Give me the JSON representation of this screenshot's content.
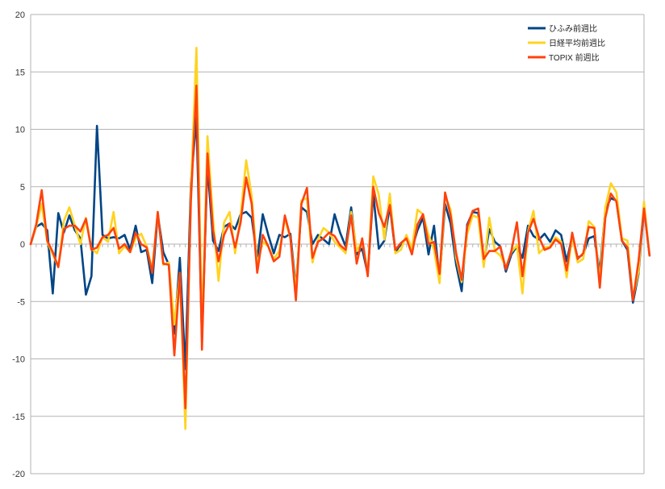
{
  "chart_data": {
    "type": "line",
    "title": "",
    "xlabel": "",
    "ylabel": "",
    "ylim": [
      -20,
      20
    ],
    "yticks": [
      20,
      15,
      10,
      5,
      0,
      -5,
      -10,
      -15,
      -20
    ],
    "ytick_labels": [
      "20",
      "15",
      "10",
      "5",
      "0",
      "-5",
      "-10",
      "-15",
      "-20"
    ],
    "grid": "horizontal",
    "legend_position": "top-right",
    "x_count": 112,
    "series": [
      {
        "name": "ひふみ前週比",
        "color": "#004586",
        "values": [
          0,
          1.5,
          1.8,
          1.2,
          -4.3,
          2.7,
          1.0,
          2.5,
          1.2,
          0.5,
          -4.4,
          -2.8,
          10.3,
          0.8,
          0.5,
          0.6,
          0.5,
          0.8,
          -0.5,
          1.6,
          -0.7,
          -0.5,
          -3.4,
          2.6,
          -0.7,
          -1.8,
          -7.8,
          -1.2,
          -10.9,
          5.3,
          11.0,
          -8.2,
          6.9,
          0.3,
          -0.6,
          1.5,
          1.8,
          1.3,
          2.6,
          2.8,
          2.3,
          -1.3,
          2.6,
          0.8,
          -0.8,
          0.8,
          0.6,
          0.9,
          -3.8,
          3.2,
          2.8,
          0.0,
          0.8,
          0.4,
          0.0,
          2.6,
          1.0,
          -0.2,
          3.2,
          -0.9,
          -0.4,
          -2.6,
          4.4,
          -0.4,
          0.3,
          3.3,
          -0.7,
          0.0,
          0.5,
          -0.4,
          1.2,
          2.3,
          -0.9,
          1.6,
          -3.1,
          3.5,
          1.8,
          -1.8,
          -4.1,
          1.7,
          2.8,
          2.7,
          -1.6,
          1.3,
          0.2,
          -0.2,
          -2.4,
          -0.9,
          -0.2,
          -1.2,
          1.6,
          0.7,
          0.4,
          0.9,
          0.2,
          1.2,
          0.8,
          -1.5,
          0.7,
          -1.2,
          -0.9,
          0.5,
          0.7,
          -2.5,
          3.0,
          4.0,
          3.8,
          0.3,
          -0.5,
          -5.1,
          -2.6,
          3.2,
          -1.0
        ]
      },
      {
        "name": "日経平均前週比",
        "color": "#ffd320",
        "values": [
          0,
          1.5,
          3.5,
          0.2,
          -0.9,
          -2.0,
          2.0,
          3.2,
          1.6,
          0.0,
          2.3,
          -0.4,
          -0.8,
          0.6,
          0.2,
          2.8,
          -0.8,
          -0.2,
          -0.7,
          0.5,
          0.9,
          -0.2,
          -2.2,
          2.8,
          -1.8,
          -1.6,
          -7.0,
          -2.5,
          -16.1,
          4.7,
          17.1,
          -7.5,
          9.4,
          2.2,
          -3.2,
          1.9,
          2.8,
          -0.8,
          2.5,
          7.3,
          4.2,
          -1.8,
          0.2,
          -0.2,
          -1.3,
          -0.6,
          2.2,
          0.5,
          -4.1,
          3.8,
          4.0,
          -1.6,
          0.4,
          1.4,
          1.0,
          0.2,
          -0.3,
          -0.8,
          2.8,
          -0.6,
          0.3,
          -2.5,
          5.9,
          4.3,
          0.4,
          4.4,
          -0.8,
          -0.5,
          0.8,
          -0.4,
          3.0,
          2.6,
          0.8,
          -0.5,
          -3.4,
          4.2,
          3.0,
          -1.2,
          -3.3,
          0.9,
          2.5,
          2.3,
          -2.0,
          2.3,
          -0.6,
          -1.0,
          -2.0,
          -0.7,
          -0.1,
          -4.3,
          1.1,
          2.9,
          -0.8,
          -0.3,
          -0.2,
          0.6,
          0.2,
          -2.9,
          0.7,
          -1.6,
          -1.3,
          2.0,
          1.5,
          -3.3,
          3.2,
          5.3,
          4.5,
          0.5,
          0.3,
          -4.7,
          -2.4,
          3.7,
          -1.0
        ]
      },
      {
        "name": "TOPIX 前週比",
        "color": "#ff420e",
        "values": [
          0,
          1.7,
          4.7,
          0.3,
          -0.7,
          -2.0,
          1.3,
          1.6,
          1.6,
          1.1,
          2.2,
          -0.5,
          -0.3,
          0.6,
          0.8,
          1.4,
          -0.4,
          0.0,
          -0.7,
          1.0,
          0.0,
          -0.3,
          -2.5,
          2.8,
          -1.7,
          -1.8,
          -9.7,
          -2.5,
          -14.3,
          3.8,
          13.8,
          -9.2,
          7.9,
          1.2,
          -1.5,
          0.8,
          1.8,
          -0.3,
          1.9,
          5.8,
          3.5,
          -2.5,
          0.8,
          -0.2,
          -1.5,
          -1.1,
          2.5,
          0.6,
          -4.9,
          3.5,
          4.9,
          -1.2,
          0.2,
          0.5,
          1.0,
          0.7,
          -0.1,
          -0.5,
          2.5,
          -1.7,
          0.5,
          -2.8,
          5.0,
          2.7,
          1.5,
          3.4,
          -0.5,
          0.1,
          0.5,
          -0.9,
          1.7,
          2.6,
          0.0,
          0.2,
          -2.6,
          4.5,
          2.5,
          -0.8,
          -3.1,
          1.5,
          2.9,
          3.1,
          -1.3,
          -0.6,
          -0.6,
          -0.2,
          -2.2,
          -0.6,
          1.9,
          -2.8,
          1.0,
          2.2,
          0.6,
          -0.5,
          -0.3,
          0.4,
          0.0,
          -2.3,
          1.0,
          -1.3,
          -0.8,
          1.5,
          1.4,
          -3.8,
          2.3,
          4.4,
          3.7,
          0.3,
          -0.3,
          -4.9,
          -1.5,
          3.1,
          -1.0
        ]
      }
    ]
  }
}
